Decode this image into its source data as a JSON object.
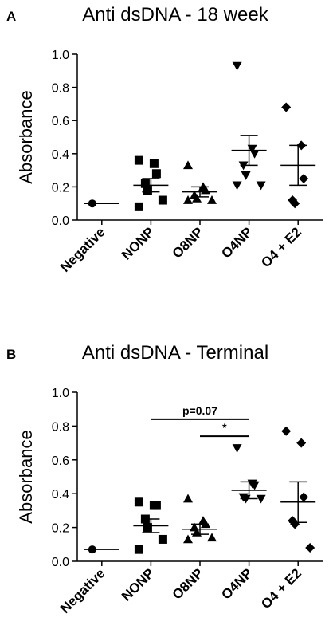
{
  "chart_data": [
    {
      "type": "dotplot",
      "panel": "A",
      "title": "Anti dsDNA - 18 week",
      "y_label": "Absorbance",
      "categories": [
        "Negative",
        "NONP",
        "O8NP",
        "O4NP",
        "O4 + E2"
      ],
      "markers": [
        "circle",
        "square",
        "triangle",
        "triangle-down",
        "diamond"
      ],
      "points": [
        [
          0.1
        ],
        [
          0.36,
          0.34,
          0.28,
          0.22,
          0.18,
          0.12,
          0.08
        ],
        [
          0.33,
          0.2,
          0.18,
          0.15,
          0.13,
          0.12,
          0.12
        ],
        [
          0.93,
          0.43,
          0.4,
          0.33,
          0.27,
          0.21,
          0.21
        ],
        [
          0.68,
          0.45,
          0.25,
          0.12,
          0.1
        ]
      ],
      "means": [
        0.1,
        0.21,
        0.17,
        0.42,
        0.33
      ],
      "sems": [
        0,
        0.04,
        0.03,
        0.09,
        0.12
      ],
      "ylim": [
        0,
        1.0
      ],
      "yticks": [
        {
          "value": 0,
          "label": "0.0"
        },
        {
          "value": 0.2,
          "label": "0.2"
        },
        {
          "value": 0.4,
          "label": "0.4"
        },
        {
          "value": 0.6,
          "label": "0.6"
        },
        {
          "value": 0.8,
          "label": "0.8"
        },
        {
          "value": 1.0,
          "label": "1.0"
        }
      ],
      "annotations": []
    },
    {
      "type": "dotplot",
      "panel": "B",
      "title": "Anti dsDNA  - Terminal",
      "y_label": "Absorbance",
      "categories": [
        "Negative",
        "NONP",
        "O8NP",
        "O4NP",
        "O4 + E2"
      ],
      "markers": [
        "circle",
        "square",
        "triangle",
        "triangle-down",
        "diamond"
      ],
      "points": [
        [
          0.07
        ],
        [
          0.35,
          0.33,
          0.33,
          0.25,
          0.2,
          0.13,
          0.07
        ],
        [
          0.37,
          0.24,
          0.22,
          0.2,
          0.17,
          0.14,
          0.13
        ],
        [
          0.67,
          0.46,
          0.45,
          0.38,
          0.37,
          0.37
        ],
        [
          0.77,
          0.7,
          0.38,
          0.24,
          0.22,
          0.08
        ]
      ],
      "means": [
        0.07,
        0.21,
        0.19,
        0.42,
        0.35
      ],
      "sems": [
        0,
        0.04,
        0.03,
        0.05,
        0.12
      ],
      "ylim": [
        0,
        1.0
      ],
      "yticks": [
        {
          "value": 0,
          "label": "0.0"
        },
        {
          "value": 0.2,
          "label": "0.2"
        },
        {
          "value": 0.4,
          "label": "0.4"
        },
        {
          "value": 0.6,
          "label": "0.6"
        },
        {
          "value": 0.8,
          "label": "0.8"
        },
        {
          "value": 1.0,
          "label": "1.0"
        }
      ],
      "annotations": [
        {
          "text": "p=0.07",
          "between": [
            1,
            3
          ],
          "y": 0.84
        },
        {
          "text": "*",
          "between": [
            2,
            3
          ],
          "y": 0.74
        }
      ]
    }
  ]
}
